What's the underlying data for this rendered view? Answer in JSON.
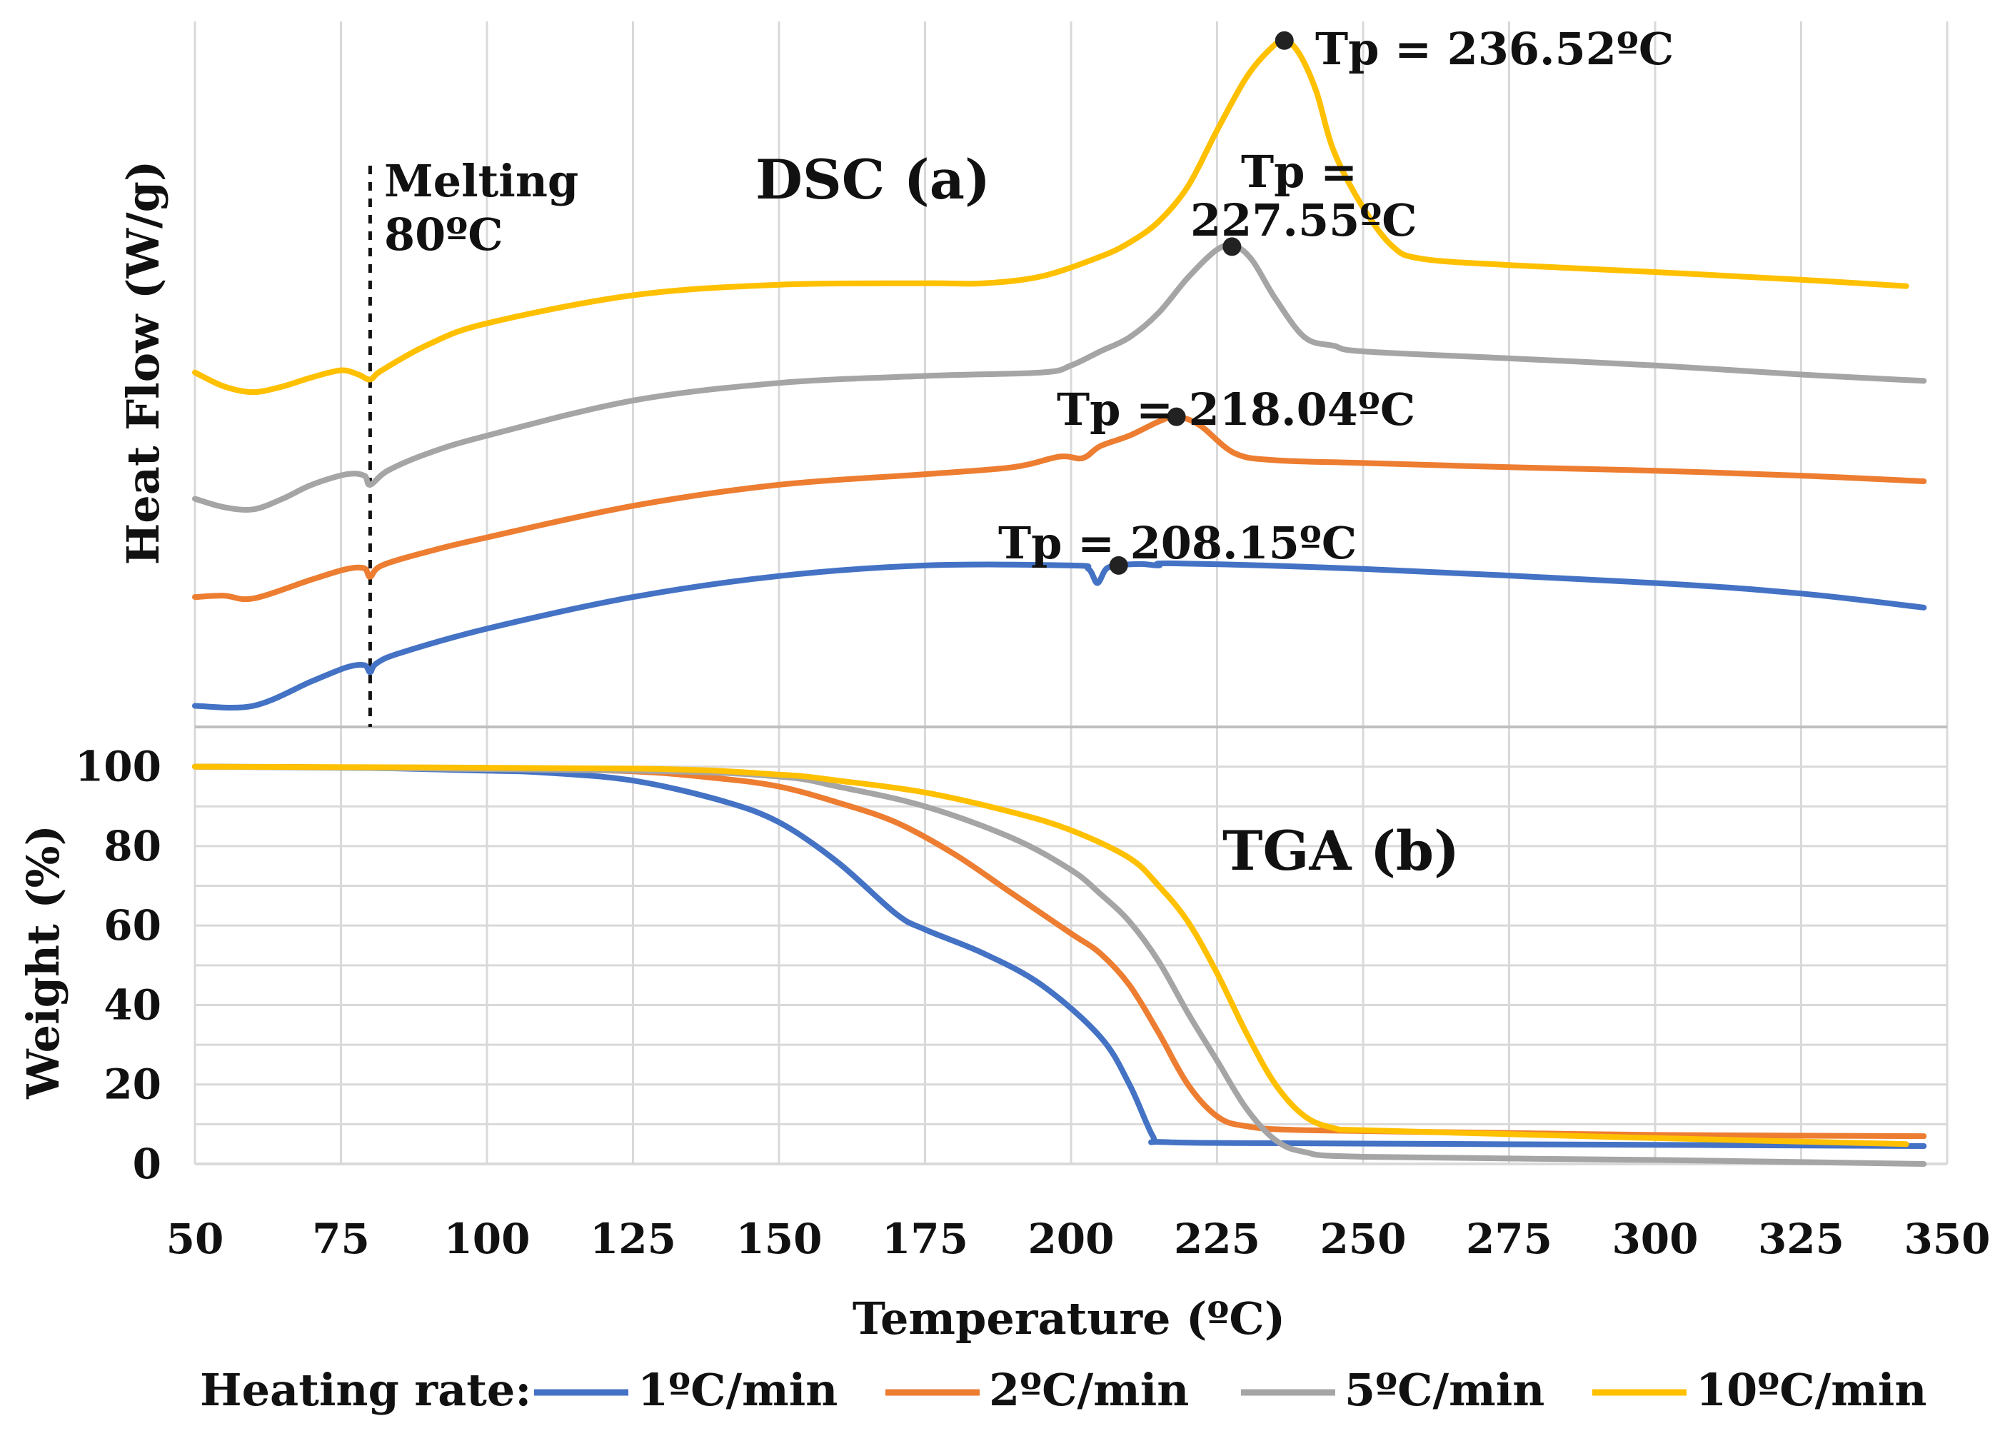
{
  "chart_data": {
    "type": "line",
    "x_axis": {
      "label": "Temperature (ºC)",
      "range": [
        50,
        350
      ],
      "ticks": [
        50,
        75,
        100,
        125,
        150,
        175,
        200,
        225,
        250,
        275,
        300,
        325,
        350
      ]
    },
    "legend": {
      "title": "Heating rate:",
      "placement": "bottom",
      "entries": [
        {
          "name": "1ºC/min",
          "color": "#4472C4"
        },
        {
          "name": "2ºC/min",
          "color": "#ED7D31"
        },
        {
          "name": "5ºC/min",
          "color": "#A5A5A5"
        },
        {
          "name": "10ºC/min",
          "color": "#FFC000"
        }
      ]
    },
    "panels": [
      {
        "id": "dsc",
        "title": "DSC (a)",
        "ylabel": "Heat Flow (W/g)",
        "ylim": [
          0,
          100
        ],
        "yticks_shown": false,
        "melting_line": {
          "x": 80,
          "label_line1": "Melting",
          "label_line2": "80ºC"
        },
        "peaks": [
          {
            "series": "1ºC/min",
            "x": 208.15,
            "label": "Tp = 208.15ºC"
          },
          {
            "series": "2ºC/min",
            "x": 218.04,
            "label": "Tp = 218.04ºC"
          },
          {
            "series": "5ºC/min",
            "x": 227.55,
            "label_line1": "Tp =",
            "label_line2": "227.55ºC"
          },
          {
            "series": "10ºC/min",
            "x": 236.52,
            "label": "Tp = 236.52ºC"
          }
        ],
        "series": [
          {
            "name": "1ºC/min",
            "color": "#4472C4",
            "points": [
              [
                50,
                3
              ],
              [
                60,
                3
              ],
              [
                70,
                6.5
              ],
              [
                76,
                8.5
              ],
              [
                79,
                8.8
              ],
              [
                80,
                7.8
              ],
              [
                81,
                9
              ],
              [
                85,
                10.5
              ],
              [
                100,
                14
              ],
              [
                125,
                18.5
              ],
              [
                150,
                21.5
              ],
              [
                175,
                23
              ],
              [
                200,
                23
              ],
              [
                203,
                22.5
              ],
              [
                204.5,
                20.5
              ],
              [
                206,
                22.5
              ],
              [
                208,
                23
              ],
              [
                212,
                23.2
              ],
              [
                215,
                23
              ],
              [
                218,
                23.3
              ],
              [
                250,
                22.5
              ],
              [
                300,
                20.5
              ],
              [
                325,
                19
              ],
              [
                346,
                17
              ]
            ]
          },
          {
            "name": "2ºC/min",
            "color": "#ED7D31",
            "points": [
              [
                50,
                18.5
              ],
              [
                55,
                18.7
              ],
              [
                60,
                18.3
              ],
              [
                70,
                21
              ],
              [
                76,
                22.5
              ],
              [
                79,
                22.6
              ],
              [
                80,
                21.4
              ],
              [
                82,
                23
              ],
              [
                90,
                25
              ],
              [
                100,
                27
              ],
              [
                125,
                31.5
              ],
              [
                150,
                34.5
              ],
              [
                175,
                36
              ],
              [
                190,
                37
              ],
              [
                198,
                38.5
              ],
              [
                202,
                38.3
              ],
              [
                205,
                40
              ],
              [
                210,
                41.5
              ],
              [
                215,
                43.5
              ],
              [
                218,
                44.2
              ],
              [
                222,
                43
              ],
              [
                228,
                39
              ],
              [
                235,
                38
              ],
              [
                250,
                37.6
              ],
              [
                275,
                37
              ],
              [
                300,
                36.5
              ],
              [
                325,
                35.8
              ],
              [
                346,
                35
              ]
            ]
          },
          {
            "name": "5ºC/min",
            "color": "#A5A5A5",
            "points": [
              [
                50,
                32.5
              ],
              [
                55,
                31.3
              ],
              [
                60,
                31
              ],
              [
                65,
                32.5
              ],
              [
                70,
                34.5
              ],
              [
                76,
                36
              ],
              [
                79,
                35.8
              ],
              [
                80,
                34.5
              ],
              [
                83,
                36.5
              ],
              [
                90,
                39
              ],
              [
                100,
                41.5
              ],
              [
                125,
                46.5
              ],
              [
                150,
                49
              ],
              [
                175,
                50
              ],
              [
                195,
                50.5
              ],
              [
                200,
                51.5
              ],
              [
                205,
                53.5
              ],
              [
                210,
                55.5
              ],
              [
                215,
                59
              ],
              [
                220,
                64
              ],
              [
                225,
                68
              ],
              [
                228,
                68.5
              ],
              [
                231,
                66.5
              ],
              [
                235,
                61
              ],
              [
                240,
                55.5
              ],
              [
                245,
                54.3
              ],
              [
                250,
                53.5
              ],
              [
                275,
                52.5
              ],
              [
                300,
                51.5
              ],
              [
                325,
                50.2
              ],
              [
                346,
                49.3
              ]
            ]
          },
          {
            "name": "10ºC/min",
            "color": "#FFC000",
            "points": [
              [
                50,
                50.5
              ],
              [
                55,
                48.5
              ],
              [
                60,
                47.7
              ],
              [
                65,
                48.5
              ],
              [
                70,
                49.8
              ],
              [
                75,
                50.8
              ],
              [
                78,
                50.2
              ],
              [
                80,
                49.5
              ],
              [
                82,
                50.8
              ],
              [
                90,
                54.5
              ],
              [
                100,
                57.5
              ],
              [
                125,
                61.5
              ],
              [
                150,
                63
              ],
              [
                175,
                63.2
              ],
              [
                185,
                63.2
              ],
              [
                195,
                64.2
              ],
              [
                205,
                67
              ],
              [
                210,
                69
              ],
              [
                215,
                72
              ],
              [
                220,
                77
              ],
              [
                225,
                85
              ],
              [
                230,
                92.5
              ],
              [
                234,
                96.5
              ],
              [
                236.5,
                97.8
              ],
              [
                239,
                96
              ],
              [
                242,
                90.5
              ],
              [
                245,
                82
              ],
              [
                250,
                74
              ],
              [
                255,
                68.5
              ],
              [
                260,
                66.7
              ],
              [
                275,
                65.8
              ],
              [
                300,
                64.8
              ],
              [
                325,
                63.7
              ],
              [
                343,
                62.8
              ]
            ]
          }
        ]
      },
      {
        "id": "tga",
        "title": "TGA (b)",
        "ylabel": "Weight (%)",
        "ylim": [
          0,
          110
        ],
        "yticks": [
          0,
          20,
          40,
          60,
          80,
          100
        ],
        "series": [
          {
            "name": "1ºC/min",
            "color": "#4472C4",
            "points": [
              [
                50,
                100
              ],
              [
                75,
                99.8
              ],
              [
                100,
                99
              ],
              [
                110,
                98.5
              ],
              [
                125,
                96.5
              ],
              [
                140,
                91.5
              ],
              [
                150,
                86
              ],
              [
                160,
                76
              ],
              [
                170,
                63
              ],
              [
                175,
                59
              ],
              [
                185,
                53
              ],
              [
                195,
                45
              ],
              [
                205,
                32
              ],
              [
                210,
                20
              ],
              [
                214,
                7
              ],
              [
                216,
                5.5
              ],
              [
                240,
                5.2
              ],
              [
                300,
                4.8
              ],
              [
                346,
                4.5
              ]
            ]
          },
          {
            "name": "2ºC/min",
            "color": "#ED7D31",
            "points": [
              [
                50,
                100
              ],
              [
                100,
                99.5
              ],
              [
                125,
                98.8
              ],
              [
                140,
                97
              ],
              [
                150,
                95
              ],
              [
                160,
                91
              ],
              [
                170,
                86
              ],
              [
                180,
                78
              ],
              [
                190,
                68
              ],
              [
                200,
                58
              ],
              [
                205,
                53
              ],
              [
                210,
                45
              ],
              [
                215,
                33
              ],
              [
                220,
                20
              ],
              [
                225,
                12
              ],
              [
                230,
                9.5
              ],
              [
                240,
                8.5
              ],
              [
                275,
                7.8
              ],
              [
                300,
                7.3
              ],
              [
                346,
                7
              ]
            ]
          },
          {
            "name": "5ºC/min",
            "color": "#A5A5A5",
            "points": [
              [
                50,
                100
              ],
              [
                125,
                99
              ],
              [
                150,
                97.5
              ],
              [
                160,
                95
              ],
              [
                175,
                90
              ],
              [
                190,
                82
              ],
              [
                200,
                74
              ],
              [
                205,
                68
              ],
              [
                210,
                61
              ],
              [
                215,
                51
              ],
              [
                220,
                38
              ],
              [
                225,
                26
              ],
              [
                230,
                14
              ],
              [
                235,
                6
              ],
              [
                240,
                3
              ],
              [
                250,
                1.8
              ],
              [
                300,
                1
              ],
              [
                346,
                0
              ]
            ]
          },
          {
            "name": "10ºC/min",
            "color": "#FFC000",
            "points": [
              [
                50,
                100
              ],
              [
                125,
                99.5
              ],
              [
                150,
                98
              ],
              [
                160,
                96.5
              ],
              [
                175,
                93.5
              ],
              [
                190,
                88.5
              ],
              [
                200,
                84
              ],
              [
                210,
                77
              ],
              [
                215,
                70
              ],
              [
                220,
                61
              ],
              [
                225,
                48
              ],
              [
                230,
                33
              ],
              [
                235,
                20
              ],
              [
                240,
                12
              ],
              [
                245,
                9
              ],
              [
                250,
                8.5
              ],
              [
                275,
                7.5
              ],
              [
                300,
                6.5
              ],
              [
                343,
                5
              ]
            ]
          }
        ]
      }
    ]
  }
}
